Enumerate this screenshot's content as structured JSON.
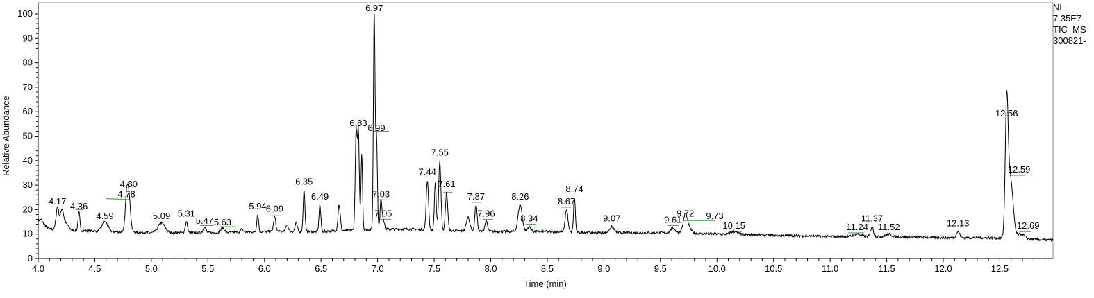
{
  "info": {
    "nl_label": "NL:",
    "nl_value": "7.35E7",
    "scan_line": "TIC  MS",
    "file_line": "300821-"
  },
  "chart_data": {
    "type": "line",
    "title": "",
    "xlabel": "Time (min)",
    "ylabel": "Relative Abundance",
    "xlim": [
      4.0,
      12.97
    ],
    "ylim": [
      0,
      100
    ],
    "grid": false,
    "x_ticks": [
      "4.0",
      "4.5",
      "5.0",
      "5.5",
      "6.0",
      "6.5",
      "7.0",
      "7.5",
      "8.0",
      "8.5",
      "9.0",
      "9.5",
      "10.0",
      "10.5",
      "11.0",
      "11.5",
      "12.0",
      "12.5"
    ],
    "y_ticks": [
      "0",
      "10",
      "20",
      "30",
      "40",
      "50",
      "60",
      "70",
      "80",
      "90",
      "100"
    ],
    "line_color": "#000000",
    "annotation_color": "#4caf50",
    "baseline": [
      [
        4.0,
        14.5
      ],
      [
        4.05,
        14
      ],
      [
        4.1,
        12
      ],
      [
        4.3,
        11.5
      ],
      [
        4.6,
        11
      ],
      [
        5.0,
        10.5
      ],
      [
        5.5,
        10.5
      ],
      [
        6.0,
        11
      ],
      [
        6.5,
        11
      ],
      [
        7.0,
        12
      ],
      [
        7.3,
        12
      ],
      [
        7.5,
        11.5
      ],
      [
        8.0,
        11
      ],
      [
        8.5,
        11
      ],
      [
        9.0,
        10.5
      ],
      [
        9.5,
        10.5
      ],
      [
        10.0,
        10
      ],
      [
        10.5,
        9.5
      ],
      [
        11.0,
        9
      ],
      [
        11.5,
        9
      ],
      [
        12.0,
        8.5
      ],
      [
        12.4,
        8.5
      ],
      [
        12.97,
        7.5
      ]
    ],
    "peaks": [
      {
        "x": 4.02,
        "y": 16,
        "w": 0.015
      },
      {
        "x": 4.17,
        "y": 21,
        "w": 0.012
      },
      {
        "x": 4.21,
        "y": 20,
        "w": 0.015
      },
      {
        "x": 4.25,
        "y": 14,
        "w": 0.02
      },
      {
        "x": 4.36,
        "y": 19,
        "w": 0.008
      },
      {
        "x": 4.59,
        "y": 15,
        "w": 0.025
      },
      {
        "x": 4.78,
        "y": 22,
        "w": 0.012
      },
      {
        "x": 4.8,
        "y": 26,
        "w": 0.015
      },
      {
        "x": 5.09,
        "y": 14.5,
        "w": 0.03
      },
      {
        "x": 5.31,
        "y": 15,
        "w": 0.01
      },
      {
        "x": 5.47,
        "y": 13,
        "w": 0.012
      },
      {
        "x": 5.63,
        "y": 12.5,
        "w": 0.015
      },
      {
        "x": 5.8,
        "y": 12,
        "w": 0.01
      },
      {
        "x": 5.94,
        "y": 18,
        "w": 0.008
      },
      {
        "x": 6.09,
        "y": 17,
        "w": 0.01
      },
      {
        "x": 6.2,
        "y": 14,
        "w": 0.01
      },
      {
        "x": 6.28,
        "y": 14.5,
        "w": 0.01
      },
      {
        "x": 6.35,
        "y": 28,
        "w": 0.008
      },
      {
        "x": 6.49,
        "y": 22,
        "w": 0.008
      },
      {
        "x": 6.66,
        "y": 22,
        "w": 0.01
      },
      {
        "x": 6.81,
        "y": 52,
        "w": 0.008
      },
      {
        "x": 6.83,
        "y": 52,
        "w": 0.008
      },
      {
        "x": 6.86,
        "y": 43,
        "w": 0.007
      },
      {
        "x": 6.97,
        "y": 100,
        "w": 0.007
      },
      {
        "x": 6.99,
        "y": 50,
        "w": 0.008
      },
      {
        "x": 7.03,
        "y": 24,
        "w": 0.008
      },
      {
        "x": 7.05,
        "y": 16,
        "w": 0.01
      },
      {
        "x": 7.44,
        "y": 32,
        "w": 0.01
      },
      {
        "x": 7.51,
        "y": 31,
        "w": 0.008
      },
      {
        "x": 7.55,
        "y": 40,
        "w": 0.01
      },
      {
        "x": 7.61,
        "y": 27,
        "w": 0.01
      },
      {
        "x": 7.8,
        "y": 17,
        "w": 0.015
      },
      {
        "x": 7.87,
        "y": 22,
        "w": 0.01
      },
      {
        "x": 7.96,
        "y": 15,
        "w": 0.012
      },
      {
        "x": 8.26,
        "y": 22,
        "w": 0.018
      },
      {
        "x": 8.34,
        "y": 13,
        "w": 0.015
      },
      {
        "x": 8.67,
        "y": 20,
        "w": 0.012
      },
      {
        "x": 8.74,
        "y": 25,
        "w": 0.008
      },
      {
        "x": 9.07,
        "y": 13,
        "w": 0.02
      },
      {
        "x": 9.61,
        "y": 12.5,
        "w": 0.02
      },
      {
        "x": 9.72,
        "y": 15,
        "w": 0.015
      },
      {
        "x": 9.73,
        "y": 14,
        "w": 0.03
      },
      {
        "x": 10.15,
        "y": 11,
        "w": 0.03
      },
      {
        "x": 11.24,
        "y": 10,
        "w": 0.03
      },
      {
        "x": 11.37,
        "y": 13,
        "w": 0.012
      },
      {
        "x": 11.52,
        "y": 10,
        "w": 0.02
      },
      {
        "x": 12.13,
        "y": 11,
        "w": 0.015
      },
      {
        "x": 12.56,
        "y": 56,
        "w": 0.012
      },
      {
        "x": 12.59,
        "y": 34,
        "w": 0.025
      },
      {
        "x": 12.69,
        "y": 10,
        "w": 0.03
      }
    ],
    "labels": [
      {
        "text": "4.17",
        "x": 4.17,
        "y": 21
      },
      {
        "text": "4.36",
        "x": 4.36,
        "y": 19
      },
      {
        "text": "4.59",
        "x": 4.59,
        "y": 15
      },
      {
        "text": "4.78",
        "x": 4.78,
        "y": 24
      },
      {
        "text": "4.80",
        "x": 4.8,
        "y": 28
      },
      {
        "text": "5.09",
        "x": 5.09,
        "y": 15
      },
      {
        "text": "5.31",
        "x": 5.31,
        "y": 16
      },
      {
        "text": "5.47",
        "x": 5.47,
        "y": 13
      },
      {
        "text": "5.63",
        "x": 5.63,
        "y": 12.5
      },
      {
        "text": "5.94",
        "x": 5.94,
        "y": 19
      },
      {
        "text": "6.09",
        "x": 6.09,
        "y": 18
      },
      {
        "text": "6.35",
        "x": 6.35,
        "y": 29
      },
      {
        "text": "6.49",
        "x": 6.49,
        "y": 23
      },
      {
        "text": "6.83",
        "x": 6.83,
        "y": 53
      },
      {
        "text": "6.97",
        "x": 6.97,
        "y": 100
      },
      {
        "text": "6.99",
        "x": 6.99,
        "y": 51
      },
      {
        "text": "7.03",
        "x": 7.03,
        "y": 24
      },
      {
        "text": "7.05",
        "x": 7.05,
        "y": 16
      },
      {
        "text": "7.44",
        "x": 7.44,
        "y": 33
      },
      {
        "text": "7.55",
        "x": 7.55,
        "y": 41
      },
      {
        "text": "7.61",
        "x": 7.61,
        "y": 28
      },
      {
        "text": "7.87",
        "x": 7.87,
        "y": 23
      },
      {
        "text": "7.96",
        "x": 7.96,
        "y": 16
      },
      {
        "text": "8.26",
        "x": 8.26,
        "y": 23
      },
      {
        "text": "8.34",
        "x": 8.34,
        "y": 14
      },
      {
        "text": "8.67",
        "x": 8.67,
        "y": 21
      },
      {
        "text": "8.74",
        "x": 8.74,
        "y": 26
      },
      {
        "text": "9.07",
        "x": 9.07,
        "y": 14
      },
      {
        "text": "9.61",
        "x": 9.61,
        "y": 13.5
      },
      {
        "text": "9.72",
        "x": 9.72,
        "y": 16
      },
      {
        "text": "9.73",
        "x": 9.98,
        "y": 15
      },
      {
        "text": "10.15",
        "x": 10.15,
        "y": 11
      },
      {
        "text": "11.24",
        "x": 11.24,
        "y": 10.5
      },
      {
        "text": "11.37",
        "x": 11.37,
        "y": 14
      },
      {
        "text": "11.52",
        "x": 11.52,
        "y": 10.5
      },
      {
        "text": "12.13",
        "x": 12.13,
        "y": 12
      },
      {
        "text": "12.56",
        "x": 12.56,
        "y": 57
      },
      {
        "text": "12.59",
        "x": 12.67,
        "y": 34
      },
      {
        "text": "12.69",
        "x": 12.75,
        "y": 11
      }
    ],
    "boundaries": [
      [
        4.33,
        4.4,
        20,
        20
      ],
      [
        4.6,
        4.82,
        24.5,
        24
      ],
      [
        5.43,
        5.55,
        13.5,
        13.5
      ],
      [
        5.6,
        5.75,
        13,
        13
      ],
      [
        6.06,
        6.14,
        17.5,
        17.5
      ],
      [
        6.96,
        7.1,
        52,
        52
      ],
      [
        7.0,
        7.08,
        24,
        24
      ],
      [
        7.02,
        7.12,
        16,
        16
      ],
      [
        7.58,
        7.66,
        27,
        27
      ],
      [
        7.83,
        7.92,
        23,
        23
      ],
      [
        7.93,
        8.02,
        16,
        16
      ],
      [
        8.31,
        8.4,
        14,
        14
      ],
      [
        8.62,
        8.71,
        21,
        21
      ],
      [
        9.56,
        9.66,
        13.5,
        13.5
      ],
      [
        9.7,
        9.98,
        15.5,
        15.5
      ],
      [
        10.1,
        10.22,
        11,
        11
      ],
      [
        11.16,
        11.3,
        10.5,
        10.5
      ],
      [
        11.48,
        11.58,
        10,
        10
      ],
      [
        12.58,
        12.72,
        34,
        34
      ],
      [
        12.67,
        12.78,
        11,
        11
      ]
    ]
  }
}
